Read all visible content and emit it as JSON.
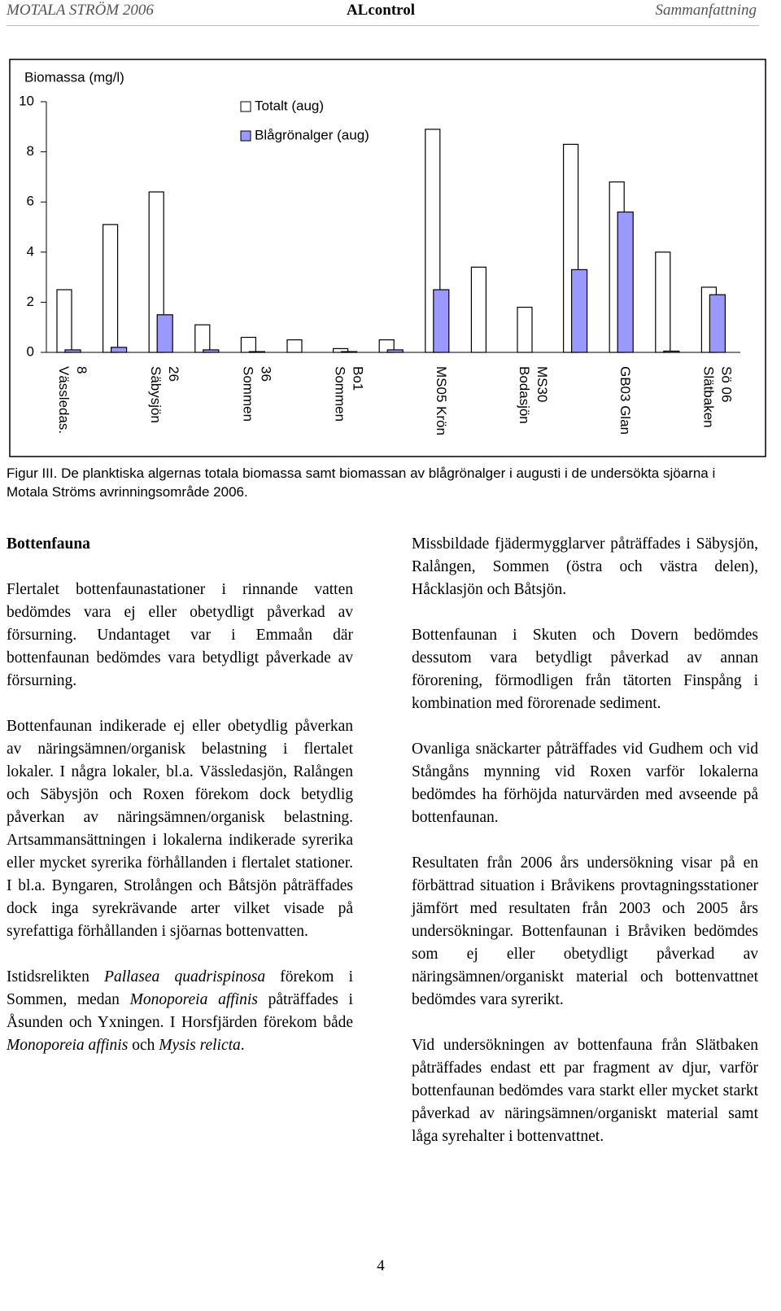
{
  "header": {
    "left": "MOTALA STRÖM 2006",
    "center": "ALcontrol",
    "right": "Sammanfattning"
  },
  "chart_data": {
    "type": "bar",
    "ylabel": "Biomassa (mg/l)",
    "categories": [
      "8\nVässledas.",
      null,
      "26\nSäbysjön",
      null,
      "36\nSommen",
      null,
      "Bo1\nSommen",
      null,
      "MS05 Krön",
      null,
      "MS30\nBodasjön",
      null,
      "GB03 Glan",
      null,
      "Sö 06\nSlätbaken"
    ],
    "series": [
      {
        "name": "Totalt (aug)",
        "color": "#ffffff",
        "values": [
          2.5,
          5.1,
          6.4,
          1.1,
          0.6,
          0.5,
          0.15,
          0.5,
          8.9,
          3.4,
          1.8,
          8.3,
          6.8,
          4.0,
          2.6
        ]
      },
      {
        "name": "Blågrönalger (aug)",
        "color": "#9999ff",
        "values": [
          0.1,
          0.2,
          1.5,
          0.1,
          0.03,
          0,
          0.03,
          0.1,
          2.5,
          0,
          0,
          3.3,
          5.6,
          0.05,
          2.3
        ]
      }
    ],
    "ylim": [
      0,
      10
    ],
    "yticks": [
      0,
      2,
      4,
      6,
      8,
      10
    ],
    "grid": false,
    "caption": "Figur III. De planktiska algernas totala biomassa samt biomassan av blågrönalger i augusti i de undersökta sjöarna i Motala Ströms avrinningsområde 2006."
  },
  "columns": [
    {
      "heading": "Bottenfauna",
      "paragraphs": [
        {
          "parts": [
            {
              "text": "Flertalet bottenfaunastationer i rinnande vatten bedömdes vara ej eller obetydligt påverkad av försurning. Undantaget var i Emmaån där bottenfaunan bedömdes vara betydligt påverkade av försurning."
            }
          ]
        },
        {
          "parts": [
            {
              "text": "Bottenfaunan indikerade ej eller obetydlig påverkan av näringsämnen/organisk belastning i flertalet lokaler. I några lokaler, bl.a. Vässledasjön, Ralången och Säbysjön och Roxen förekom dock betydlig påverkan av näringsämnen/organisk belastning. Artsammansättningen i lokalerna indikerade syrerika eller mycket syrerika förhållanden i flertalet stationer. I bl.a. Byngaren, Strolången och Båtsjön påträffades dock inga syrekrävande arter vilket visade på syrefattiga förhållanden i sjöarnas bottenvatten."
            }
          ]
        },
        {
          "parts": [
            {
              "text": "Istidsrelikten "
            },
            {
              "em": "Pallasea quadrispinosa"
            },
            {
              "text": " förekom i Sommen, medan "
            },
            {
              "em": "Monoporeia affinis"
            },
            {
              "text": " påträffades i Åsunden och Yxningen. I Horsfjärden förekom både "
            },
            {
              "em": "Monoporeia affinis"
            },
            {
              "text": " och "
            },
            {
              "em": "Mysis relicta"
            },
            {
              "text": "."
            }
          ]
        }
      ]
    },
    {
      "paragraphs": [
        {
          "parts": [
            {
              "text": "Missbildade fjädermygglarver påträffades i Säbysjön, Ralången, Sommen (östra och västra delen), Håcklasjön och Båtsjön."
            }
          ]
        },
        {
          "parts": [
            {
              "text": "Bottenfaunan i Skuten och Dovern bedömdes dessutom vara betydligt påverkad av annan förorening, förmodligen från tätorten Finspång i kombination med förorenade sediment."
            }
          ]
        },
        {
          "parts": [
            {
              "text": "Ovanliga snäckarter påträffades vid Gudhem och vid Stångåns mynning vid Roxen varför lokalerna bedömdes ha förhöjda naturvärden med avseende på bottenfaunan."
            }
          ]
        },
        {
          "parts": [
            {
              "text": "Resultaten från 2006 års undersökning visar på en förbättrad situation i Bråvikens provtagningsstationer jämfört med resultaten från 2003 och 2005 års undersökningar. Bottenfaunan i Bråviken bedömdes som ej eller obetydligt påverkad av näringsämnen/organiskt material och bottenvattnet bedömdes vara syrerikt."
            }
          ]
        },
        {
          "parts": [
            {
              "text": "Vid undersökningen av bottenfauna från Slätbaken påträffades endast ett par fragment av djur, varför bottenfaunan bedömdes vara starkt eller mycket starkt påverkad av näringsämnen/organiskt material samt låga syrehalter i bottenvattnet."
            }
          ]
        }
      ]
    }
  ],
  "page_number": "4"
}
